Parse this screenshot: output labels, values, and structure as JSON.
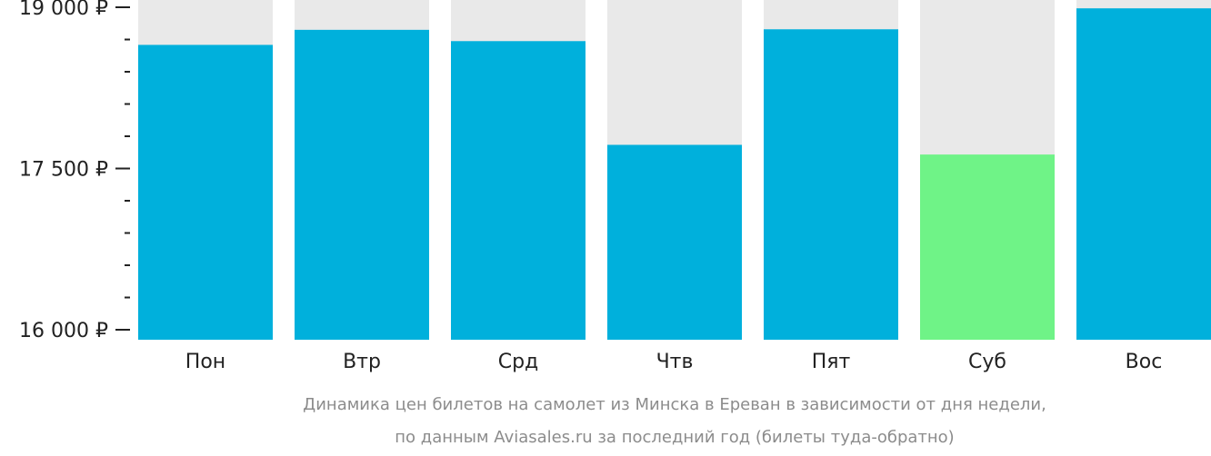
{
  "chart_data": {
    "type": "bar",
    "categories": [
      "Пон",
      "Втр",
      "Срд",
      "Чтв",
      "Пят",
      "Суб",
      "Вос"
    ],
    "values": [
      18650,
      18790,
      18685,
      17720,
      18795,
      17630,
      18990
    ],
    "highlight_index": 5,
    "ylim": [
      16000,
      19100
    ],
    "yticks": [
      {
        "value": 16000,
        "label": "16 000 ₽"
      },
      {
        "value": 17500,
        "label": "17 500 ₽"
      },
      {
        "value": 19000,
        "label": "19 000 ₽"
      }
    ],
    "minor_tick_step": 300,
    "grid": false,
    "colors": {
      "bar": "#00b0dc",
      "highlight": "#6ff387",
      "background_column": "#e9e9e9",
      "axis": "#222222"
    },
    "caption_lines": [
      "Динамика цен билетов на самолет из Минска в Ереван в зависимости от дня недели,",
      "по данным Aviasales.ru за последний год (билеты туда-обратно)"
    ]
  }
}
